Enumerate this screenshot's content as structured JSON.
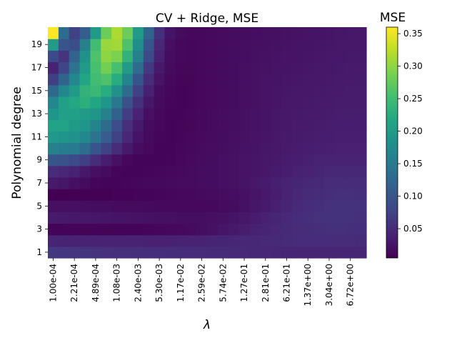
{
  "chart_data": {
    "type": "heatmap",
    "title": "CV + Ridge, MSE",
    "xlabel": "λ",
    "ylabel": "Polynomial degree",
    "colorbar_label": "MSE",
    "colormap": "viridis",
    "value_range": [
      0.005,
      0.36
    ],
    "colorbar_ticks": [
      "0.05",
      "0.10",
      "0.15",
      "0.20",
      "0.25",
      "0.30",
      "0.35"
    ],
    "colorbar_tick_values": [
      0.05,
      0.1,
      0.15,
      0.2,
      0.25,
      0.3,
      0.35
    ],
    "x_tick_labels": [
      "1.00e-04",
      "2.21e-04",
      "4.89e-04",
      "1.08e-03",
      "2.40e-03",
      "5.30e-03",
      "1.17e-02",
      "2.59e-02",
      "5.74e-02",
      "1.27e-01",
      "2.81e-01",
      "6.21e-01",
      "1.37e+00",
      "3.04e+00",
      "6.72e+00"
    ],
    "y_tick_labels": [
      "1",
      "3",
      "5",
      "7",
      "9",
      "11",
      "13",
      "15",
      "17",
      "19"
    ],
    "x_count": 30,
    "lambda_range": [
      0.0001,
      10
    ],
    "degrees": [
      1,
      20
    ],
    "values": [
      [
        0.063,
        0.061,
        0.06,
        0.058,
        0.057,
        0.056,
        0.055,
        0.055,
        0.054,
        0.054,
        0.053,
        0.052,
        0.052,
        0.051,
        0.05,
        0.049,
        0.049,
        0.048,
        0.047,
        0.046,
        0.045,
        0.044,
        0.043,
        0.042,
        0.042,
        0.042,
        0.042,
        0.042,
        0.042,
        0.042
      ],
      [
        0.042,
        0.041,
        0.041,
        0.04,
        0.04,
        0.039,
        0.039,
        0.039,
        0.039,
        0.038,
        0.038,
        0.038,
        0.039,
        0.04,
        0.041,
        0.042,
        0.043,
        0.044,
        0.045,
        0.046,
        0.047,
        0.048,
        0.049,
        0.05,
        0.051,
        0.051,
        0.051,
        0.05,
        0.05,
        0.049
      ],
      [
        0.008,
        0.008,
        0.008,
        0.008,
        0.008,
        0.008,
        0.008,
        0.009,
        0.009,
        0.01,
        0.011,
        0.012,
        0.014,
        0.016,
        0.019,
        0.022,
        0.026,
        0.03,
        0.034,
        0.038,
        0.042,
        0.045,
        0.048,
        0.05,
        0.052,
        0.054,
        0.055,
        0.055,
        0.054,
        0.053
      ],
      [
        0.032,
        0.03,
        0.029,
        0.028,
        0.027,
        0.026,
        0.025,
        0.024,
        0.023,
        0.022,
        0.021,
        0.02,
        0.019,
        0.019,
        0.019,
        0.02,
        0.022,
        0.025,
        0.029,
        0.033,
        0.038,
        0.043,
        0.047,
        0.051,
        0.054,
        0.056,
        0.057,
        0.057,
        0.056,
        0.055
      ],
      [
        0.02,
        0.02,
        0.02,
        0.019,
        0.018,
        0.017,
        0.016,
        0.015,
        0.015,
        0.014,
        0.013,
        0.013,
        0.012,
        0.012,
        0.012,
        0.013,
        0.015,
        0.018,
        0.022,
        0.027,
        0.032,
        0.037,
        0.042,
        0.047,
        0.051,
        0.054,
        0.056,
        0.057,
        0.057,
        0.056
      ],
      [
        0.005,
        0.005,
        0.006,
        0.006,
        0.006,
        0.006,
        0.007,
        0.007,
        0.008,
        0.009,
        0.01,
        0.011,
        0.012,
        0.013,
        0.014,
        0.015,
        0.017,
        0.019,
        0.022,
        0.026,
        0.03,
        0.035,
        0.04,
        0.045,
        0.049,
        0.052,
        0.054,
        0.055,
        0.055,
        0.054
      ],
      [
        0.03,
        0.027,
        0.02,
        0.015,
        0.01,
        0.008,
        0.009,
        0.01,
        0.011,
        0.012,
        0.013,
        0.014,
        0.015,
        0.016,
        0.017,
        0.018,
        0.02,
        0.022,
        0.025,
        0.028,
        0.032,
        0.036,
        0.04,
        0.043,
        0.046,
        0.048,
        0.05,
        0.05,
        0.05,
        0.05
      ],
      [
        0.05,
        0.045,
        0.038,
        0.028,
        0.02,
        0.015,
        0.01,
        0.008,
        0.009,
        0.01,
        0.011,
        0.012,
        0.014,
        0.015,
        0.017,
        0.018,
        0.02,
        0.022,
        0.024,
        0.026,
        0.029,
        0.032,
        0.035,
        0.038,
        0.041,
        0.043,
        0.045,
        0.046,
        0.046,
        0.046
      ],
      [
        0.1,
        0.095,
        0.085,
        0.07,
        0.05,
        0.035,
        0.022,
        0.012,
        0.009,
        0.008,
        0.009,
        0.01,
        0.012,
        0.014,
        0.016,
        0.018,
        0.02,
        0.022,
        0.024,
        0.026,
        0.028,
        0.03,
        0.033,
        0.035,
        0.037,
        0.039,
        0.04,
        0.041,
        0.041,
        0.041
      ],
      [
        0.16,
        0.155,
        0.15,
        0.13,
        0.1,
        0.075,
        0.05,
        0.03,
        0.018,
        0.012,
        0.009,
        0.009,
        0.011,
        0.013,
        0.015,
        0.017,
        0.019,
        0.021,
        0.023,
        0.025,
        0.027,
        0.029,
        0.031,
        0.033,
        0.035,
        0.036,
        0.037,
        0.038,
        0.038,
        0.038
      ],
      [
        0.195,
        0.19,
        0.185,
        0.17,
        0.14,
        0.11,
        0.075,
        0.045,
        0.025,
        0.014,
        0.01,
        0.009,
        0.01,
        0.012,
        0.014,
        0.016,
        0.018,
        0.02,
        0.022,
        0.024,
        0.026,
        0.028,
        0.03,
        0.032,
        0.033,
        0.034,
        0.035,
        0.036,
        0.036,
        0.036
      ],
      [
        0.21,
        0.21,
        0.2,
        0.19,
        0.165,
        0.13,
        0.09,
        0.055,
        0.03,
        0.016,
        0.011,
        0.009,
        0.01,
        0.011,
        0.013,
        0.015,
        0.017,
        0.019,
        0.021,
        0.023,
        0.025,
        0.027,
        0.029,
        0.031,
        0.032,
        0.033,
        0.034,
        0.035,
        0.035,
        0.035
      ],
      [
        0.19,
        0.205,
        0.205,
        0.2,
        0.19,
        0.16,
        0.115,
        0.07,
        0.04,
        0.02,
        0.012,
        0.009,
        0.009,
        0.011,
        0.013,
        0.015,
        0.017,
        0.019,
        0.021,
        0.023,
        0.025,
        0.027,
        0.029,
        0.03,
        0.031,
        0.032,
        0.033,
        0.034,
        0.034,
        0.034
      ],
      [
        0.17,
        0.205,
        0.22,
        0.23,
        0.215,
        0.19,
        0.145,
        0.095,
        0.055,
        0.028,
        0.015,
        0.01,
        0.009,
        0.01,
        0.012,
        0.014,
        0.016,
        0.018,
        0.02,
        0.022,
        0.024,
        0.026,
        0.028,
        0.029,
        0.03,
        0.031,
        0.032,
        0.033,
        0.033,
        0.033
      ],
      [
        0.125,
        0.17,
        0.2,
        0.235,
        0.245,
        0.225,
        0.185,
        0.13,
        0.075,
        0.038,
        0.018,
        0.011,
        0.009,
        0.01,
        0.012,
        0.014,
        0.016,
        0.018,
        0.02,
        0.022,
        0.024,
        0.026,
        0.027,
        0.028,
        0.029,
        0.03,
        0.031,
        0.032,
        0.033,
        0.033
      ],
      [
        0.07,
        0.12,
        0.17,
        0.215,
        0.25,
        0.26,
        0.225,
        0.165,
        0.1,
        0.05,
        0.024,
        0.013,
        0.01,
        0.01,
        0.012,
        0.014,
        0.016,
        0.018,
        0.02,
        0.022,
        0.024,
        0.025,
        0.026,
        0.027,
        0.028,
        0.029,
        0.03,
        0.031,
        0.032,
        0.032
      ],
      [
        0.04,
        0.08,
        0.14,
        0.2,
        0.255,
        0.285,
        0.255,
        0.2,
        0.13,
        0.065,
        0.03,
        0.015,
        0.011,
        0.011,
        0.012,
        0.014,
        0.016,
        0.018,
        0.02,
        0.022,
        0.023,
        0.024,
        0.025,
        0.026,
        0.027,
        0.028,
        0.029,
        0.03,
        0.031,
        0.031
      ],
      [
        0.085,
        0.06,
        0.12,
        0.185,
        0.26,
        0.3,
        0.29,
        0.235,
        0.16,
        0.085,
        0.038,
        0.018,
        0.012,
        0.011,
        0.012,
        0.014,
        0.016,
        0.018,
        0.019,
        0.021,
        0.022,
        0.023,
        0.024,
        0.025,
        0.026,
        0.027,
        0.028,
        0.029,
        0.03,
        0.03
      ],
      [
        0.2,
        0.1,
        0.09,
        0.16,
        0.25,
        0.305,
        0.31,
        0.26,
        0.18,
        0.1,
        0.045,
        0.02,
        0.013,
        0.011,
        0.012,
        0.014,
        0.016,
        0.017,
        0.019,
        0.02,
        0.021,
        0.022,
        0.023,
        0.024,
        0.025,
        0.026,
        0.027,
        0.028,
        0.029,
        0.029
      ],
      [
        0.36,
        0.13,
        0.075,
        0.11,
        0.2,
        0.28,
        0.315,
        0.28,
        0.2,
        0.12,
        0.055,
        0.025,
        0.015,
        0.012,
        0.012,
        0.014,
        0.015,
        0.017,
        0.018,
        0.019,
        0.02,
        0.021,
        0.022,
        0.023,
        0.024,
        0.025,
        0.026,
        0.027,
        0.028,
        0.028
      ]
    ]
  }
}
